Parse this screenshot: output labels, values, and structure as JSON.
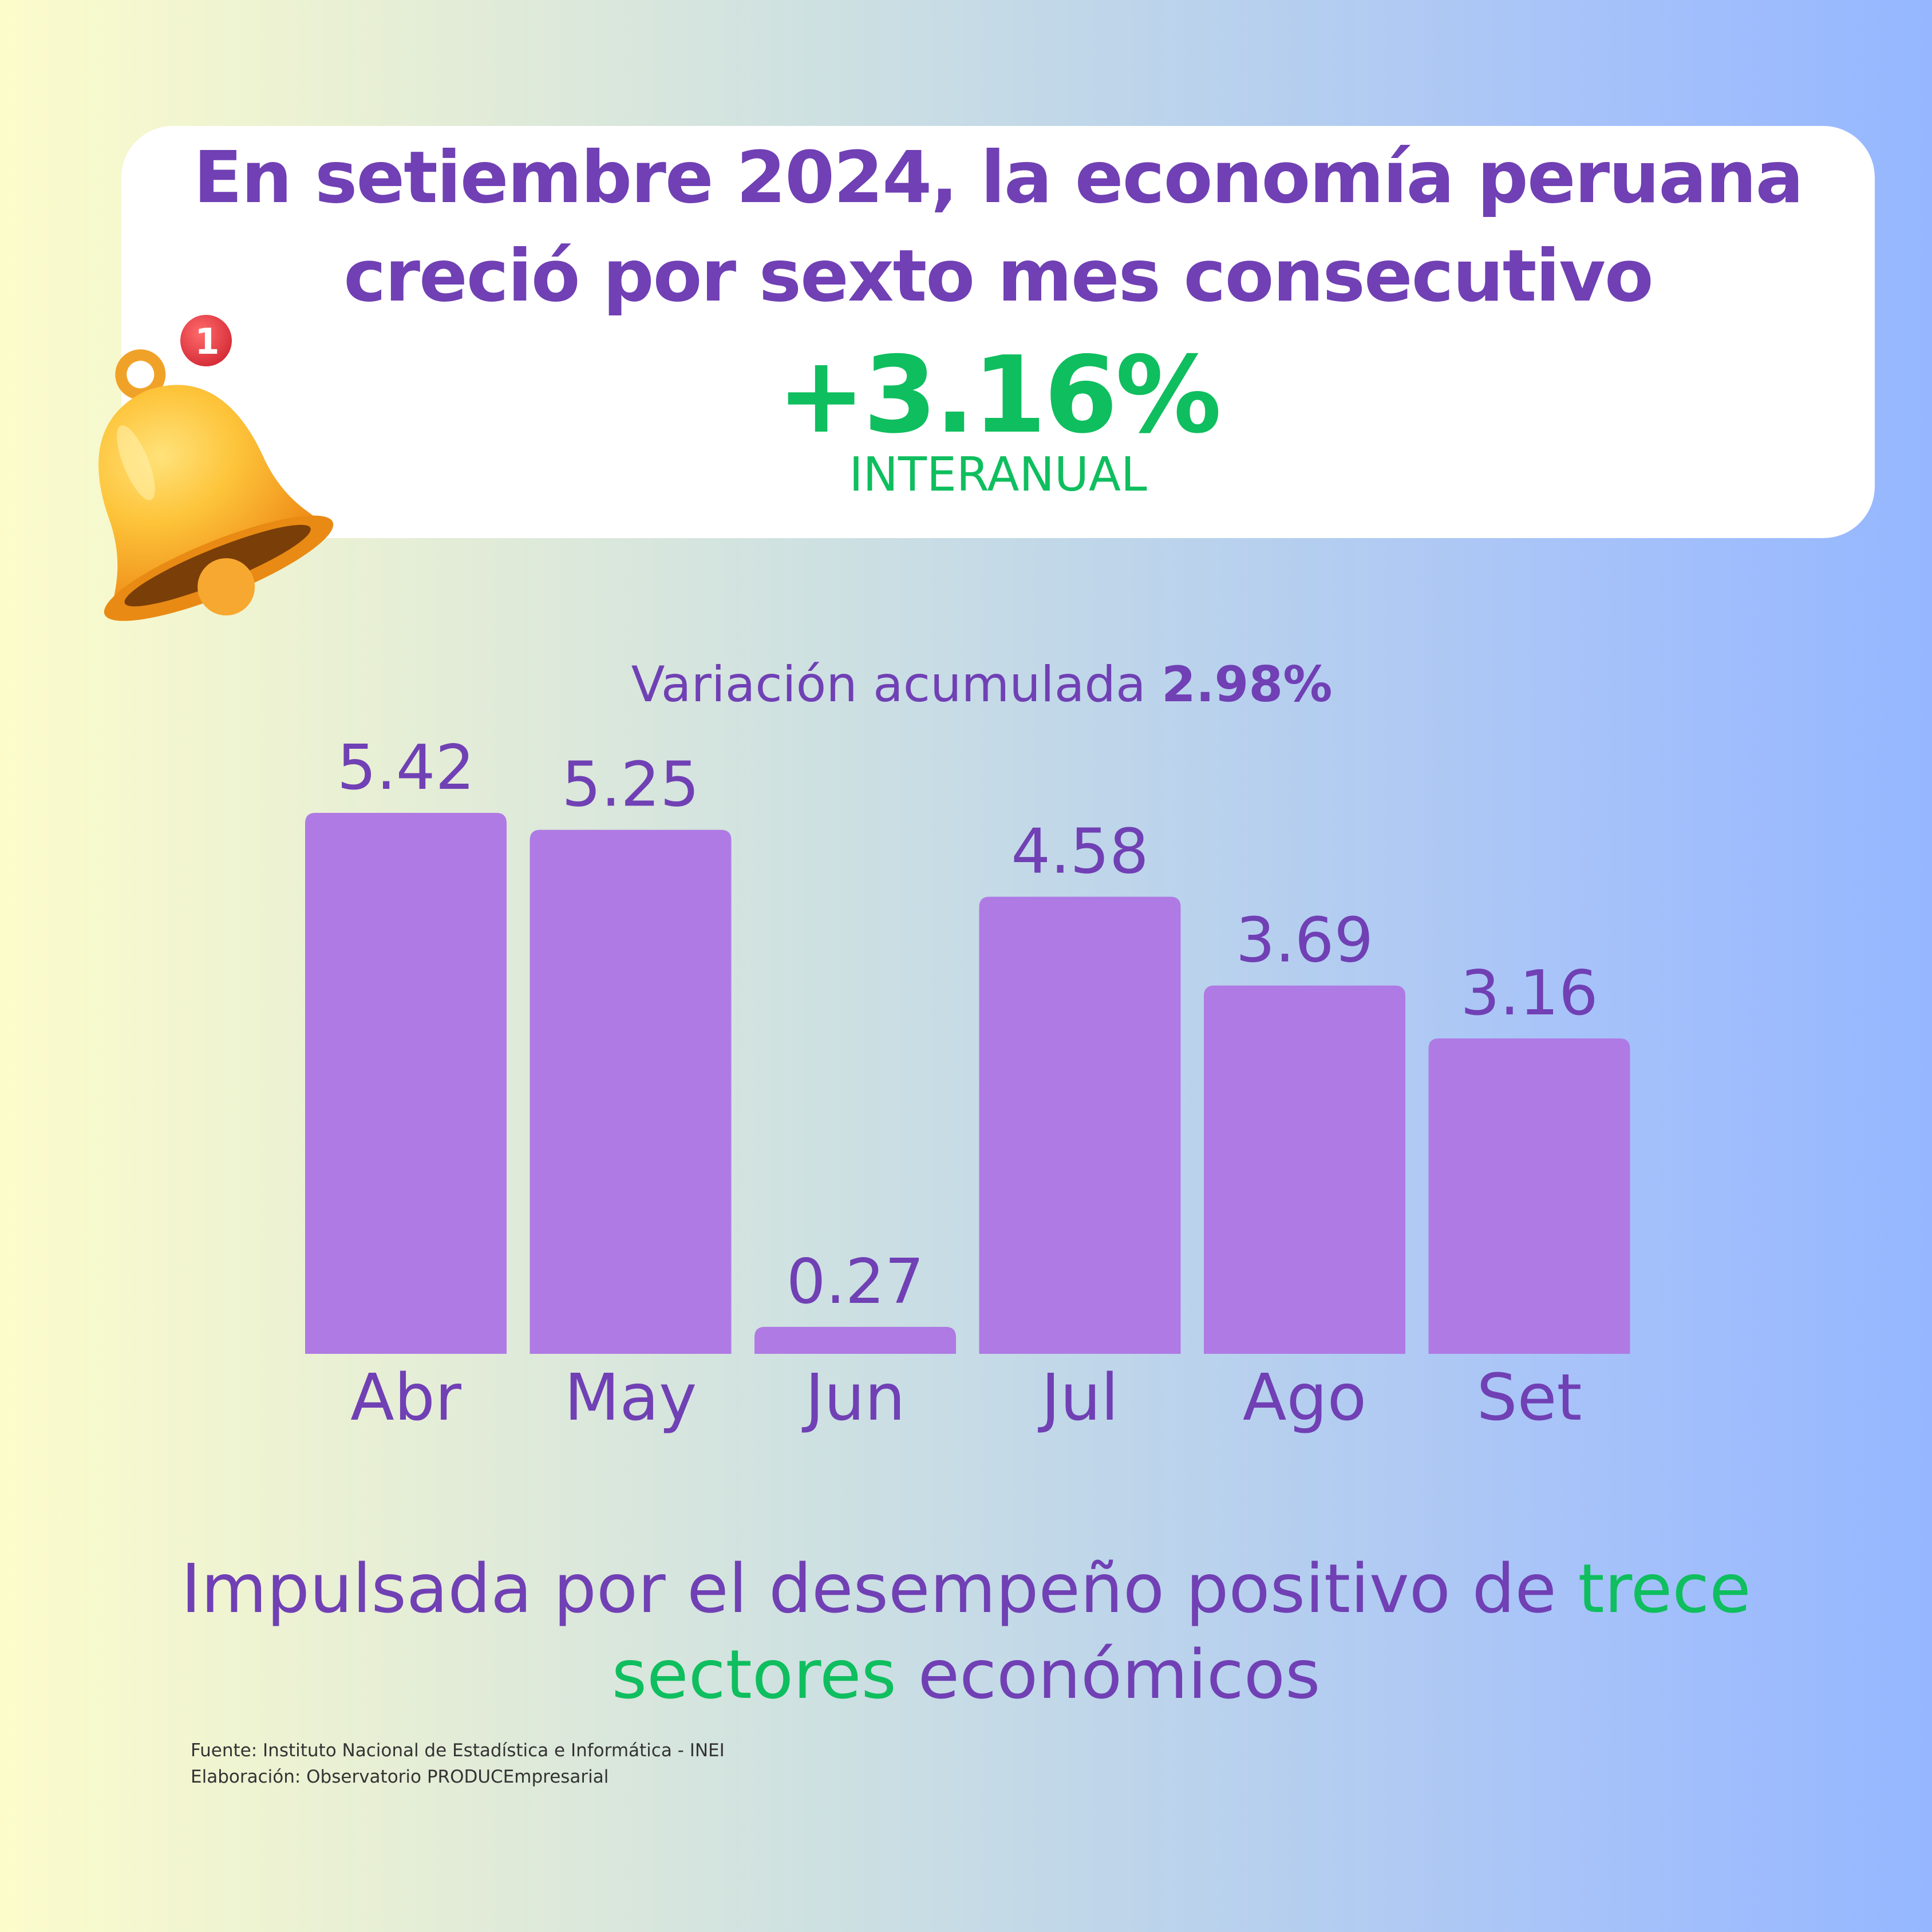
{
  "header": {
    "title_line1": "En setiembre 2024, la economía peruana",
    "title_line2": "creció por sexto mes consecutivo",
    "value": "+3.16%",
    "value_caption": "INTERANUAL"
  },
  "notification_badge": "1",
  "chart_data": {
    "type": "bar",
    "title": "",
    "subtitle_prefix": "Variación acumulada",
    "subtitle_value": "2.98%",
    "categories": [
      "Abr",
      "May",
      "Jun",
      "Jul",
      "Ago",
      "Set"
    ],
    "values": [
      5.42,
      5.25,
      0.27,
      4.58,
      3.69,
      3.16
    ],
    "value_labels": [
      "5.42",
      "5.25",
      "0.27",
      "4.58",
      "3.69",
      "3.16"
    ],
    "xlabel": "",
    "ylabel": "",
    "ylim": [
      0,
      5.42
    ],
    "grid": false,
    "legend": "none",
    "bar_color": "#af7ae4"
  },
  "footer": {
    "text_a": "Impulsada por el desempeño positivo de ",
    "text_b": "trece",
    "text_c": "sectores",
    "text_d": " económicos"
  },
  "source": {
    "line1": "Fuente: Instituto Nacional de Estadística e Informática - INEI",
    "line2": "Elaboración: Observatorio PRODUCEmpresarial"
  },
  "colors": {
    "purple": "#7040b4",
    "green": "#0fbe5e",
    "bar": "#af7ae4",
    "bell": "#fdb52a",
    "badge": "#e53945"
  }
}
